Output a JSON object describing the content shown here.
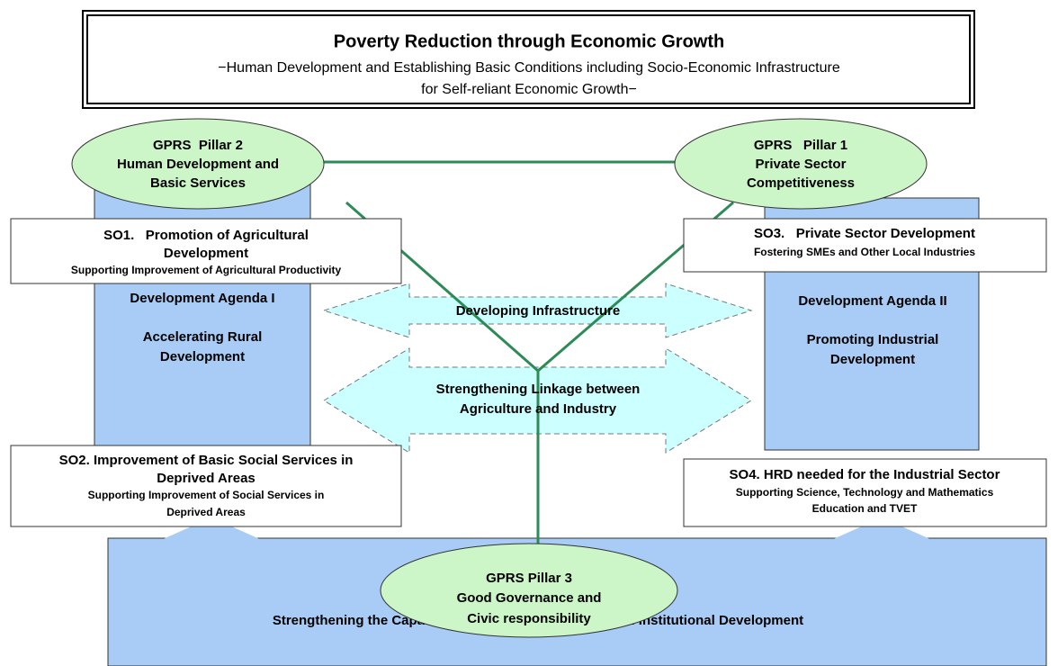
{
  "header": {
    "title": "Poverty Reduction through Economic Growth",
    "subtitle": [
      "−Human Development and Establishing Basic Conditions including Socio-Economic Infrastructure",
      "for Self-reliant Economic Growth−"
    ]
  },
  "pillars": [
    {
      "lines": [
        "GPRS  Pillar 2",
        "Human Development and",
        "Basic Services"
      ]
    },
    {
      "lines": [
        "GPRS   Pillar 1",
        "Private Sector",
        "Competitiveness"
      ]
    },
    {
      "lines": [
        "GPRS Pillar 3",
        "Good Governance and",
        "Civic responsibility"
      ]
    }
  ],
  "objectives": [
    {
      "heading": [
        "SO1.   Promotion of Agricultural",
        "Development"
      ],
      "detail": [
        "Supporting Improvement of Agricultural Productivity"
      ]
    },
    {
      "heading": [
        "SO3.   Private Sector Development"
      ],
      "detail": [
        "Fostering SMEs and Other Local Industries"
      ]
    },
    {
      "heading": [
        "SO2. Improvement of Basic Social Services in",
        "Deprived Areas"
      ],
      "detail": [
        "Supporting Improvement of Social Services in",
        "Deprived Areas"
      ]
    },
    {
      "heading": [
        "SO4. HRD needed for the Industrial Sector"
      ],
      "detail": [
        "Supporting Science, Technology and Mathematics",
        "Education and TVET"
      ]
    }
  ],
  "agendas": [
    {
      "title": "Development Agenda I",
      "lines": [
        "Accelerating Rural",
        "Development"
      ]
    },
    {
      "title": "Development Agenda II",
      "lines": [
        "Promoting Industrial",
        "Development"
      ]
    }
  ],
  "linkages": [
    {
      "lines": [
        "Developing Infrastructure"
      ]
    },
    {
      "lines": [
        "Strengthening Linkage between",
        "Agriculture and Industry"
      ]
    }
  ],
  "foundation": "Strengthening the Capacity of Public Administration and Institutional Development"
}
